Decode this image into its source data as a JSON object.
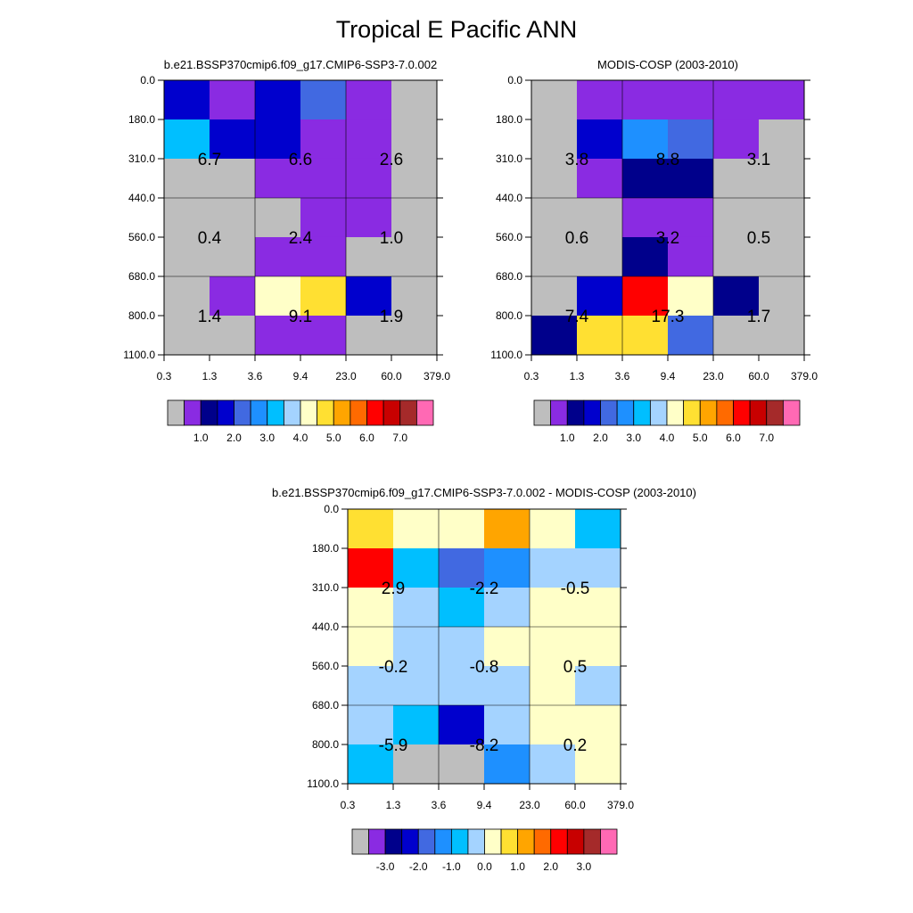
{
  "figure_title": "Tropical E Pacific ANN",
  "chart_data": [
    {
      "type": "heatmap",
      "title": "b.e21.BSSP370cmip6.f09_g17.CMIP6-SSP3-7.0.002",
      "x_tick_labels": [
        "0.3",
        "1.3",
        "3.6",
        "9.4",
        "23.0",
        "60.0",
        "379.0"
      ],
      "y_tick_labels": [
        "0.0",
        "180.0",
        "310.0",
        "440.0",
        "560.0",
        "680.0",
        "800.0",
        "1100.0"
      ],
      "cell_color_index": [
        [
          3,
          1,
          3,
          4,
          1,
          0
        ],
        [
          6,
          3,
          3,
          1,
          1,
          0
        ],
        [
          0,
          0,
          1,
          1,
          1,
          0
        ],
        [
          0,
          0,
          0,
          1,
          1,
          0
        ],
        [
          0,
          0,
          1,
          1,
          0,
          0
        ],
        [
          0,
          1,
          8,
          9,
          3,
          0
        ],
        [
          0,
          0,
          1,
          1,
          0,
          0
        ]
      ],
      "block_values": [
        [
          "6.7",
          "6.6",
          "2.6"
        ],
        [
          "0.4",
          "2.4",
          "1.0"
        ],
        [
          "1.4",
          "9.1",
          "1.9"
        ]
      ],
      "colorbar": {
        "colors": [
          "#bebebe",
          "#8a2be2",
          "#00008b",
          "#0000cd",
          "#4169e1",
          "#1e90ff",
          "#00bfff",
          "#a4d3ff",
          "#ffffc8",
          "#ffe032",
          "#ffa500",
          "#ff6a00",
          "#ff0000",
          "#c80000",
          "#a52a2a",
          "#ff69b4"
        ],
        "labels": [
          "1.0",
          "2.0",
          "3.0",
          "4.0",
          "5.0",
          "6.0",
          "7.0"
        ]
      }
    },
    {
      "type": "heatmap",
      "title": "MODIS-COSP (2003-2010)",
      "x_tick_labels": [
        "0.3",
        "1.3",
        "3.6",
        "9.4",
        "23.0",
        "60.0",
        "379.0"
      ],
      "y_tick_labels": [
        "0.0",
        "180.0",
        "310.0",
        "440.0",
        "560.0",
        "680.0",
        "800.0",
        "1100.0"
      ],
      "cell_color_index": [
        [
          0,
          1,
          1,
          1,
          1,
          1
        ],
        [
          0,
          3,
          5,
          4,
          1,
          0
        ],
        [
          0,
          1,
          2,
          2,
          0,
          0
        ],
        [
          0,
          0,
          1,
          1,
          0,
          0
        ],
        [
          0,
          0,
          2,
          1,
          0,
          0
        ],
        [
          0,
          3,
          12,
          8,
          2,
          0
        ],
        [
          2,
          9,
          9,
          4,
          0,
          0
        ]
      ],
      "block_values": [
        [
          "3.8",
          "8.8",
          "3.1"
        ],
        [
          "0.6",
          "3.2",
          "0.5"
        ],
        [
          "7.4",
          "17.3",
          "1.7"
        ]
      ],
      "colorbar": {
        "colors": [
          "#bebebe",
          "#8a2be2",
          "#00008b",
          "#0000cd",
          "#4169e1",
          "#1e90ff",
          "#00bfff",
          "#a4d3ff",
          "#ffffc8",
          "#ffe032",
          "#ffa500",
          "#ff6a00",
          "#ff0000",
          "#c80000",
          "#a52a2a",
          "#ff69b4"
        ],
        "labels": [
          "1.0",
          "2.0",
          "3.0",
          "4.0",
          "5.0",
          "6.0",
          "7.0"
        ]
      }
    },
    {
      "type": "heatmap",
      "title": "b.e21.BSSP370cmip6.f09_g17.CMIP6-SSP3-7.0.002 - MODIS-COSP (2003-2010)",
      "x_tick_labels": [
        "0.3",
        "1.3",
        "3.6",
        "9.4",
        "23.0",
        "60.0",
        "379.0"
      ],
      "y_tick_labels": [
        "0.0",
        "180.0",
        "310.0",
        "440.0",
        "560.0",
        "680.0",
        "800.0",
        "1100.0"
      ],
      "cell_color_index": [
        [
          9,
          8,
          8,
          10,
          8,
          6
        ],
        [
          12,
          6,
          4,
          5,
          7,
          7
        ],
        [
          8,
          7,
          6,
          7,
          8,
          8
        ],
        [
          8,
          7,
          7,
          8,
          8,
          8
        ],
        [
          7,
          7,
          7,
          7,
          8,
          7
        ],
        [
          7,
          6,
          3,
          7,
          8,
          8
        ],
        [
          6,
          0,
          0,
          5,
          7,
          8
        ]
      ],
      "block_values": [
        [
          "2.9",
          "-2.2",
          "-0.5"
        ],
        [
          "-0.2",
          "-0.8",
          "0.5"
        ],
        [
          "-5.9",
          "-8.2",
          "0.2"
        ]
      ],
      "colorbar": {
        "colors": [
          "#bebebe",
          "#8a2be2",
          "#00008b",
          "#0000cd",
          "#4169e1",
          "#1e90ff",
          "#00bfff",
          "#a4d3ff",
          "#ffffc8",
          "#ffe032",
          "#ffa500",
          "#ff6a00",
          "#ff0000",
          "#c80000",
          "#a52a2a",
          "#ff69b4"
        ],
        "labels": [
          "-3.0",
          "-2.0",
          "-1.0",
          "0.0",
          "1.0",
          "2.0",
          "3.0"
        ]
      }
    }
  ]
}
